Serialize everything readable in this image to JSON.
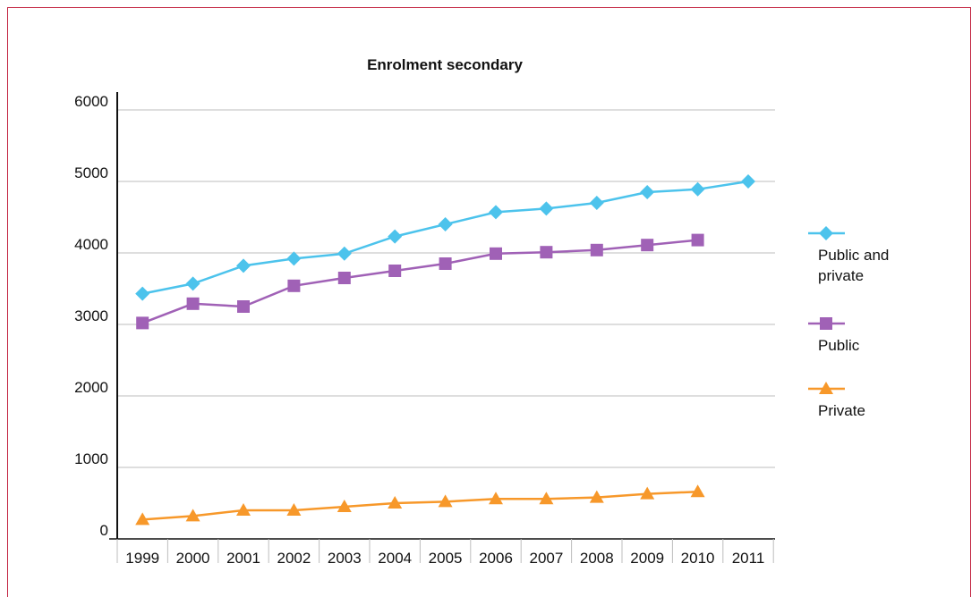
{
  "chart_data": {
    "type": "line",
    "title": "Enrolment secondary",
    "xlabel": "",
    "ylabel": "",
    "x": [
      "1999",
      "2000",
      "2001",
      "2002",
      "2003",
      "2004",
      "2005",
      "2006",
      "2007",
      "2008",
      "2009",
      "2010",
      "2011"
    ],
    "ylim": [
      0,
      6000
    ],
    "yticks": [
      0,
      1000,
      2000,
      3000,
      4000,
      5000,
      6000
    ],
    "grid": true,
    "legend_position": "right",
    "series": [
      {
        "name": "Public and private",
        "marker": "diamond",
        "color": "#4cc3ec",
        "values": [
          3430,
          3570,
          3820,
          3920,
          3990,
          4230,
          4400,
          4570,
          4620,
          4700,
          4850,
          4890,
          5000
        ]
      },
      {
        "name": "Public",
        "marker": "square",
        "color": "#a061b6",
        "values": [
          3020,
          3290,
          3250,
          3540,
          3650,
          3750,
          3850,
          3990,
          4010,
          4040,
          4110,
          4180,
          null
        ]
      },
      {
        "name": "Private",
        "marker": "triangle",
        "color": "#f7982a",
        "values": [
          270,
          320,
          400,
          400,
          450,
          500,
          520,
          560,
          560,
          580,
          630,
          660,
          null
        ]
      }
    ]
  }
}
